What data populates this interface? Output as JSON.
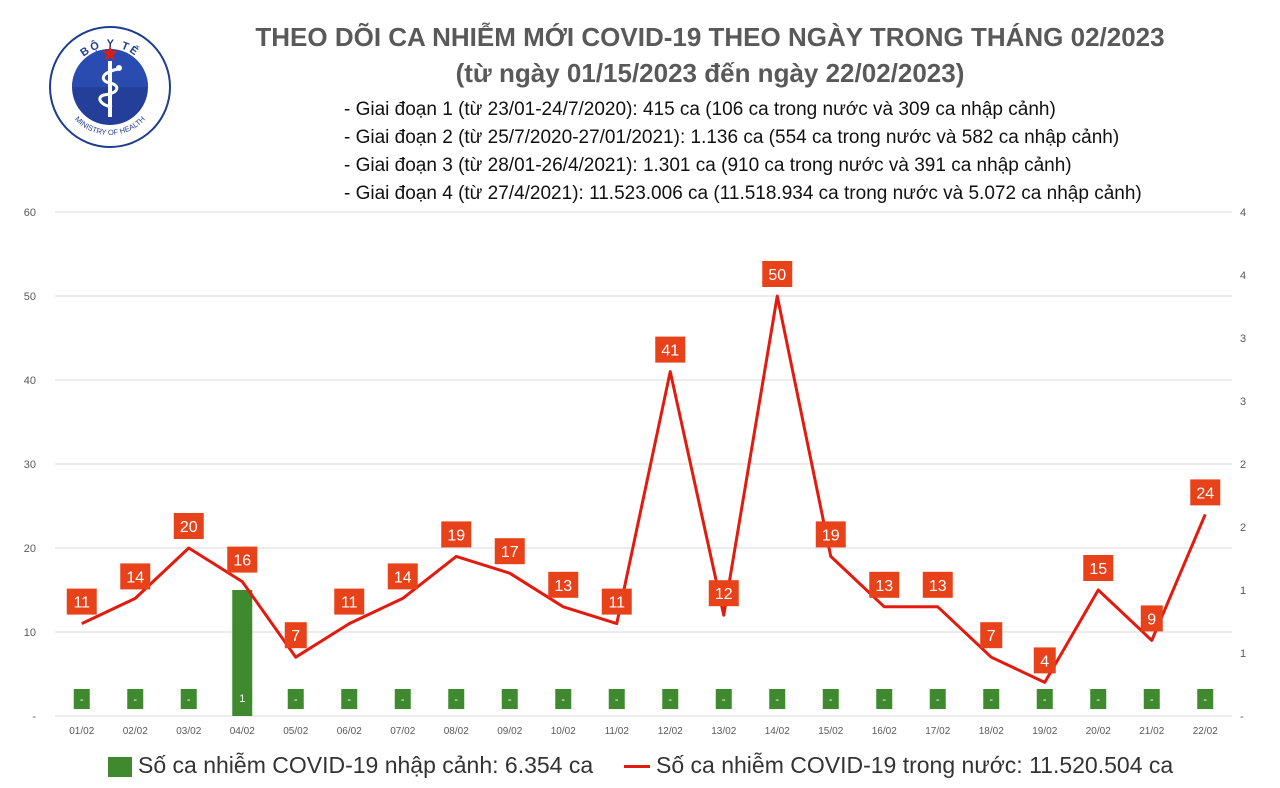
{
  "logo": {
    "top_text": "BỘ Y TẾ",
    "bottom_text": "MINISTRY OF HEALTH"
  },
  "header": {
    "title": "THEO DÕI CA NHIỄM MỚI COVID-19 THEO NGÀY TRONG THÁNG 02/2023",
    "subtitle": "(từ ngày 01/15/2023 đến ngày 22/02/2023)",
    "phases": [
      "- Giai đoạn 1 (từ 23/01-24/7/2020): 415 ca (106 ca trong nước và 309 ca nhập cảnh)",
      "- Giai đoạn 2 (từ 25/7/2020-27/01/2021): 1.136 ca (554 ca trong nước và 582 ca nhập cảnh)",
      "- Giai đoạn 3 (từ 28/01-26/4/2021): 1.301 ca (910 ca trong nước và 391 ca nhập cảnh)",
      "- Giai đoạn 4 (từ 27/4/2021): 11.523.006 ca (11.518.934 ca trong nước và 5.072 ca nhập cảnh)"
    ]
  },
  "legend": {
    "bar_label": "Số ca nhiễm COVID-19 nhập cảnh: 6.354 ca",
    "line_label": "Số ca nhiễm COVID-19 trong nước: 11.520.504 ca"
  },
  "colors": {
    "bar": "#3f8a2e",
    "line": "#e31b0f",
    "label_box": "#e8421b",
    "grid": "#d9d9d9",
    "axis_text": "#595959"
  },
  "chart_data": {
    "type": "bar+line",
    "categories": [
      "01/02",
      "02/02",
      "03/02",
      "04/02",
      "05/02",
      "06/02",
      "07/02",
      "08/02",
      "09/02",
      "10/02",
      "11/02",
      "12/02",
      "13/02",
      "14/02",
      "15/02",
      "16/02",
      "17/02",
      "18/02",
      "19/02",
      "20/02",
      "21/02",
      "22/02"
    ],
    "left_axis": {
      "ticks": [
        "-",
        "10",
        "20",
        "30",
        "40",
        "50",
        "60"
      ],
      "ylim": [
        0,
        60
      ]
    },
    "right_axis": {
      "ticks": [
        "-",
        "1",
        "1",
        "2",
        "2",
        "3",
        "3",
        "4",
        "4"
      ]
    },
    "series": [
      {
        "name": "Số ca nhiễm COVID-19 nhập cảnh",
        "type": "bar",
        "values": [
          0,
          0,
          0,
          1,
          0,
          0,
          0,
          0,
          0,
          0,
          0,
          0,
          0,
          0,
          0,
          0,
          0,
          0,
          0,
          0,
          0,
          0
        ],
        "labels": [
          "-",
          "-",
          "-",
          "1",
          "-",
          "-",
          "-",
          "-",
          "-",
          "-",
          "-",
          "-",
          "-",
          "-",
          "-",
          "-",
          "-",
          "-",
          "-",
          "-",
          "-",
          "-"
        ]
      },
      {
        "name": "Số ca nhiễm COVID-19 trong nước",
        "type": "line",
        "values": [
          11,
          14,
          20,
          16,
          7,
          11,
          14,
          19,
          17,
          13,
          11,
          41,
          12,
          50,
          19,
          13,
          13,
          7,
          4,
          15,
          9,
          24
        ]
      }
    ]
  }
}
